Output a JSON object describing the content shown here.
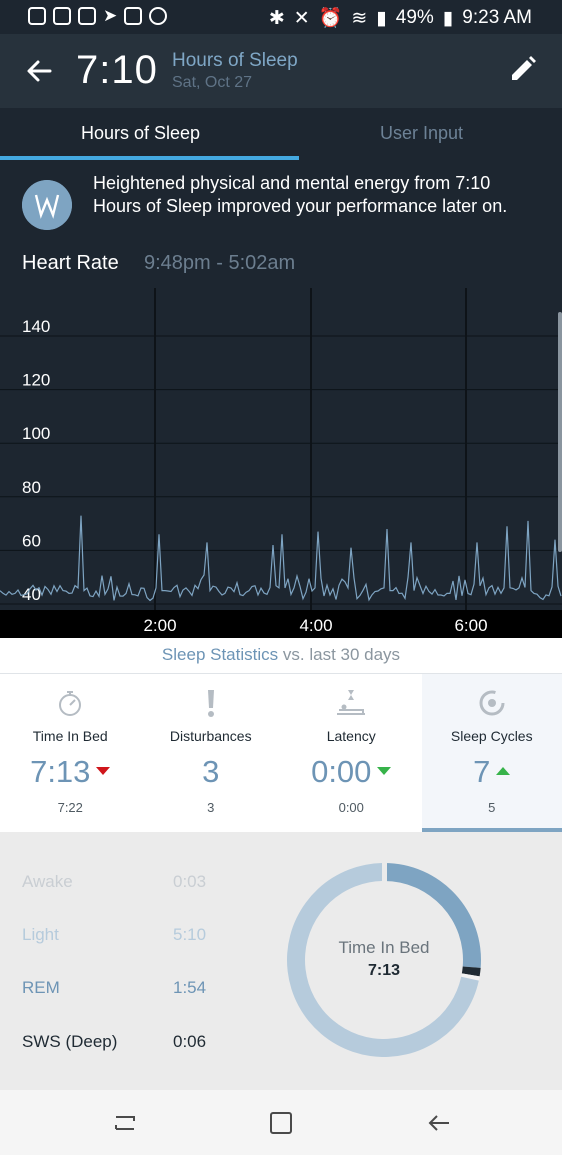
{
  "status_bar": {
    "battery": "49%",
    "time": "9:23 AM"
  },
  "header": {
    "time": "7:10",
    "title": "Hours of Sleep",
    "date": "Sat, Oct 27"
  },
  "tabs": [
    {
      "label": "Hours of Sleep",
      "active": true
    },
    {
      "label": "User Input",
      "active": false
    }
  ],
  "insight": {
    "text": "Heightened physical and mental energy from 7:10 Hours of Sleep improved your performance later on."
  },
  "heart_rate": {
    "title": "Heart Rate",
    "range": "9:48pm - 5:02am"
  },
  "chart_data": {
    "type": "line",
    "y_ticks": [
      40,
      60,
      80,
      100,
      120,
      140
    ],
    "x_ticks": [
      "2:00",
      "4:00",
      "6:00"
    ],
    "ylim": [
      40,
      150
    ],
    "line_color": "#7ea4c2",
    "spikes": [
      {
        "t": 0.145,
        "v": 73
      },
      {
        "t": 0.282,
        "v": 66
      },
      {
        "t": 0.366,
        "v": 63
      },
      {
        "t": 0.487,
        "v": 62
      },
      {
        "t": 0.502,
        "v": 66
      },
      {
        "t": 0.568,
        "v": 67
      },
      {
        "t": 0.625,
        "v": 61
      },
      {
        "t": 0.687,
        "v": 68
      },
      {
        "t": 0.73,
        "v": 63
      },
      {
        "t": 0.85,
        "v": 63
      },
      {
        "t": 0.903,
        "v": 69
      },
      {
        "t": 0.94,
        "v": 71
      },
      {
        "t": 0.99,
        "v": 64
      }
    ]
  },
  "sleep_stats": {
    "title": "Sleep Statistics",
    "subtitle": "vs. last 30 days",
    "items": [
      {
        "label": "Time In Bed",
        "value": "7:13",
        "trend": "down-red",
        "compare": "7:22"
      },
      {
        "label": "Disturbances",
        "value": "3",
        "trend": "none",
        "compare": "3"
      },
      {
        "label": "Latency",
        "value": "0:00",
        "trend": "down-green",
        "compare": "0:00"
      },
      {
        "label": "Sleep Cycles",
        "value": "7",
        "trend": "up-green",
        "compare": "5"
      }
    ]
  },
  "breakdown": {
    "rows": [
      {
        "label": "Awake",
        "value": "0:03",
        "color": "#c9ced3"
      },
      {
        "label": "Light",
        "value": "5:10",
        "color": "#b6cbdc"
      },
      {
        "label": "REM",
        "value": "1:54",
        "color": "#6d94b5"
      },
      {
        "label": "SWS (Deep)",
        "value": "0:06",
        "color": "#1f2a33"
      }
    ],
    "donut_label": "Time In Bed",
    "donut_value": "7:13",
    "donut_fractions": {
      "rem": 0.263,
      "sws": 0.014,
      "awake": 0.007,
      "light": 0.716
    }
  }
}
